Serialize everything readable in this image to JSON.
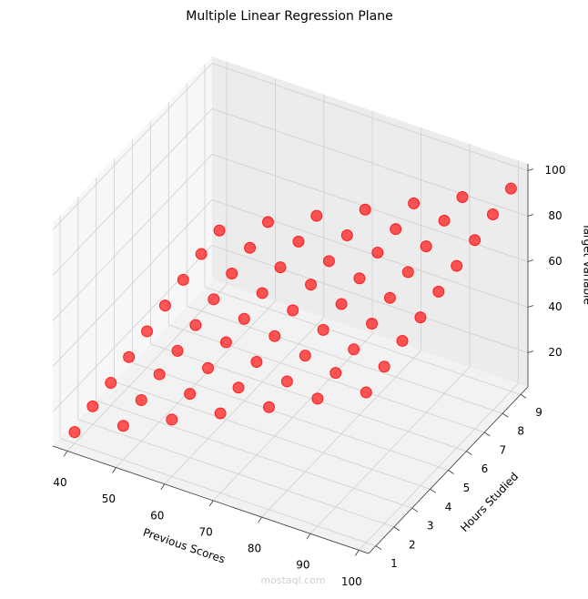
{
  "chart_data": {
    "type": "scatter3d",
    "title": "Multiple Linear Regression Plane",
    "xlabel": "Previous Scores",
    "ylabel": "Hours Studied",
    "zlabel": "Target Variable",
    "color": "#ff0000",
    "xlim": [
      37,
      102
    ],
    "ylim": [
      0.6,
      9.4
    ],
    "zlim": [
      5,
      103
    ],
    "xticks": [
      40,
      50,
      60,
      70,
      80,
      90,
      100
    ],
    "yticks": [
      1,
      2,
      3,
      4,
      5,
      6,
      7,
      8,
      9
    ],
    "zticks": [
      20,
      40,
      60,
      80,
      100
    ],
    "grid": true,
    "x": [
      40,
      40,
      40,
      40,
      40,
      40,
      40,
      40,
      40,
      50,
      50,
      50,
      50,
      50,
      50,
      50,
      50,
      50,
      60,
      60,
      60,
      60,
      60,
      60,
      60,
      60,
      60,
      70,
      70,
      70,
      70,
      70,
      70,
      70,
      70,
      70,
      80,
      80,
      80,
      80,
      80,
      80,
      80,
      80,
      80,
      90,
      90,
      90,
      90,
      90,
      90,
      90,
      90,
      90,
      100,
      100,
      100,
      100,
      100,
      100,
      100,
      100,
      100
    ],
    "y": [
      1,
      2,
      3,
      4,
      5,
      6,
      7,
      8,
      9,
      1,
      2,
      3,
      4,
      5,
      6,
      7,
      8,
      9,
      1,
      2,
      3,
      4,
      5,
      6,
      7,
      8,
      9,
      1,
      2,
      3,
      4,
      5,
      6,
      7,
      8,
      9,
      1,
      2,
      3,
      4,
      5,
      6,
      7,
      8,
      9,
      1,
      2,
      3,
      4,
      5,
      6,
      7,
      8,
      9,
      1,
      2,
      3,
      4,
      5,
      6,
      7,
      8,
      9
    ],
    "z": [
      10,
      13,
      15,
      18,
      21,
      24,
      27,
      30,
      32,
      20,
      23,
      26,
      28,
      31,
      34,
      37,
      40,
      43,
      30,
      33,
      36,
      39,
      41,
      44,
      47,
      50,
      53,
      40,
      43,
      46,
      49,
      52,
      55,
      57,
      60,
      63,
      50,
      53,
      56,
      59,
      62,
      65,
      68,
      70,
      73,
      61,
      64,
      66,
      69,
      72,
      75,
      78,
      81,
      83,
      71,
      74,
      77,
      79,
      82,
      85,
      88,
      91,
      94
    ]
  },
  "watermark": "mostaql.com"
}
